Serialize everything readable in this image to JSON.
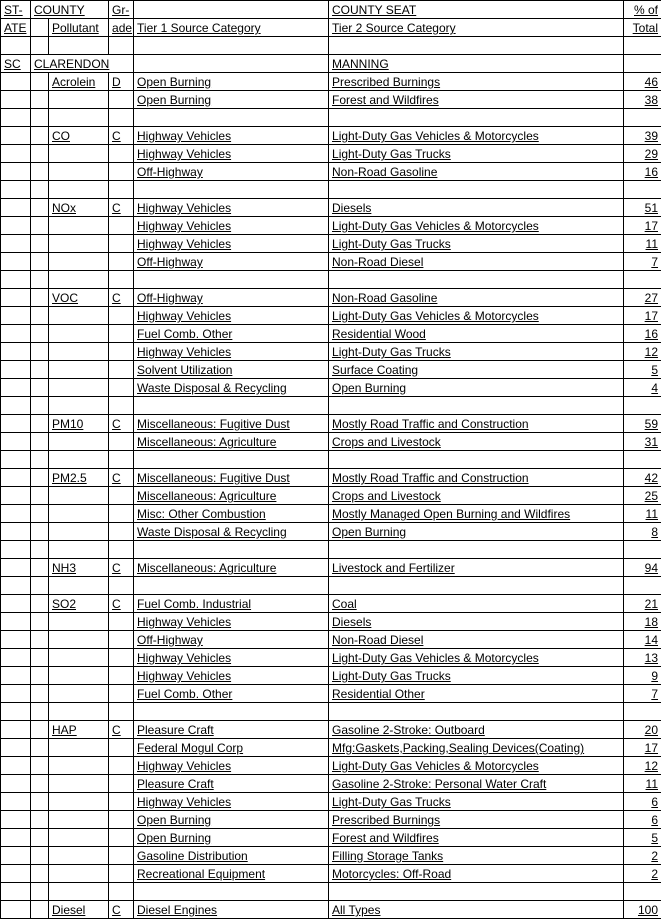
{
  "header": {
    "state_l1": "ST-",
    "state_l2": "ATE",
    "county": "COUNTY",
    "pollutant": "Pollutant",
    "grade_l1": "Gr-",
    "grade_l2": "ade",
    "tier1": "Tier 1 Source Category",
    "county_seat": "COUNTY SEAT",
    "tier2": "Tier 2 Source Category",
    "pct_l1": "% of",
    "pct_l2": "Total"
  },
  "state": "SC",
  "county": "CLARENDON",
  "county_seat": "MANNING",
  "groups": [
    {
      "pollutant": "Acrolein",
      "grade": "D",
      "rows": [
        {
          "t1": "Open Burning",
          "t2": "Prescribed Burnings",
          "pct": "46"
        },
        {
          "t1": "Open Burning",
          "t2": "Forest and Wildfires",
          "pct": "38"
        }
      ]
    },
    {
      "pollutant": "CO",
      "grade": "C",
      "rows": [
        {
          "t1": "Highway Vehicles",
          "t2": "Light-Duty Gas Vehicles & Motorcycles",
          "pct": "39"
        },
        {
          "t1": "Highway Vehicles",
          "t2": "Light-Duty Gas Trucks",
          "pct": "29"
        },
        {
          "t1": "Off-Highway",
          "t2": "Non-Road Gasoline",
          "pct": "16"
        }
      ]
    },
    {
      "pollutant": "NOx",
      "grade": "C",
      "rows": [
        {
          "t1": "Highway Vehicles",
          "t2": "Diesels",
          "pct": "51"
        },
        {
          "t1": "Highway Vehicles",
          "t2": "Light-Duty Gas Vehicles & Motorcycles",
          "pct": "17"
        },
        {
          "t1": "Highway Vehicles",
          "t2": "Light-Duty Gas Trucks",
          "pct": "11"
        },
        {
          "t1": "Off-Highway",
          "t2": "Non-Road Diesel",
          "pct": "7"
        }
      ]
    },
    {
      "pollutant": "VOC",
      "grade": "C",
      "rows": [
        {
          "t1": "Off-Highway",
          "t2": "Non-Road Gasoline",
          "pct": "27"
        },
        {
          "t1": "Highway Vehicles",
          "t2": "Light-Duty Gas Vehicles & Motorcycles",
          "pct": "17"
        },
        {
          "t1": "Fuel Comb. Other",
          "t2": "Residential Wood",
          "pct": "16"
        },
        {
          "t1": "Highway Vehicles",
          "t2": "Light-Duty Gas Trucks",
          "pct": "12"
        },
        {
          "t1": "Solvent Utilization",
          "t2": "Surface Coating",
          "pct": "5"
        },
        {
          "t1": "Waste Disposal & Recycling",
          "t2": "Open Burning",
          "pct": "4"
        }
      ]
    },
    {
      "pollutant": "PM10",
      "grade": "C",
      "rows": [
        {
          "t1": "Miscellaneous: Fugitive Dust",
          "t2": "Mostly Road Traffic and Construction",
          "pct": "59"
        },
        {
          "t1": "Miscellaneous: Agriculture",
          "t2": "Crops and Livestock",
          "pct": "31"
        }
      ]
    },
    {
      "pollutant": "PM2.5",
      "grade": "C",
      "rows": [
        {
          "t1": "Miscellaneous: Fugitive Dust",
          "t2": "Mostly Road Traffic and Construction",
          "pct": "42"
        },
        {
          "t1": "Miscellaneous: Agriculture",
          "t2": "Crops and Livestock",
          "pct": "25"
        },
        {
          "t1": "Misc: Other Combustion",
          "t2": "Mostly Managed Open Burning and Wildfires",
          "pct": "11"
        },
        {
          "t1": "Waste Disposal & Recycling",
          "t2": "Open Burning",
          "pct": "8"
        }
      ]
    },
    {
      "pollutant": "NH3",
      "grade": "C",
      "rows": [
        {
          "t1": "Miscellaneous: Agriculture",
          "t2": "Livestock and Fertilizer",
          "pct": "94"
        }
      ]
    },
    {
      "pollutant": "SO2",
      "grade": "C",
      "rows": [
        {
          "t1": "Fuel Comb. Industrial",
          "t2": "Coal",
          "pct": "21"
        },
        {
          "t1": "Highway Vehicles",
          "t2": "Diesels",
          "pct": "18"
        },
        {
          "t1": "Off-Highway",
          "t2": "Non-Road Diesel",
          "pct": "14"
        },
        {
          "t1": "Highway Vehicles",
          "t2": "Light-Duty Gas Vehicles & Motorcycles",
          "pct": "13"
        },
        {
          "t1": "Highway Vehicles",
          "t2": "Light-Duty Gas Trucks",
          "pct": "9"
        },
        {
          "t1": "Fuel Comb. Other",
          "t2": "Residential Other",
          "pct": "7"
        }
      ]
    },
    {
      "pollutant": "HAP",
      "grade": "C",
      "rows": [
        {
          "t1": "Pleasure Craft",
          "t2": "Gasoline 2-Stroke: Outboard",
          "pct": "20"
        },
        {
          "t1": "Federal Mogul Corp",
          "t2": "Mfg:Gaskets,Packing,Sealing Devices(Coating)",
          "pct": "17"
        },
        {
          "t1": "Highway Vehicles",
          "t2": "Light-Duty Gas Vehicles & Motorcycles",
          "pct": "12"
        },
        {
          "t1": "Pleasure Craft",
          "t2": "Gasoline 2-Stroke: Personal Water Craft",
          "pct": "11"
        },
        {
          "t1": "Highway Vehicles",
          "t2": "Light-Duty Gas Trucks",
          "pct": "6"
        },
        {
          "t1": "Open Burning",
          "t2": "Prescribed Burnings",
          "pct": "6"
        },
        {
          "t1": "Open Burning",
          "t2": "Forest and Wildfires",
          "pct": "5"
        },
        {
          "t1": "Gasoline Distribution",
          "t2": "Filling Storage Tanks",
          "pct": "2"
        },
        {
          "t1": "Recreational Equipment",
          "t2": "Motorcycles: Off-Road",
          "pct": "2"
        }
      ]
    },
    {
      "pollutant": "Diesel",
      "grade": "C",
      "rows": [
        {
          "t1": "Diesel Engines",
          "t2": "All Types",
          "pct": "100"
        }
      ]
    }
  ]
}
